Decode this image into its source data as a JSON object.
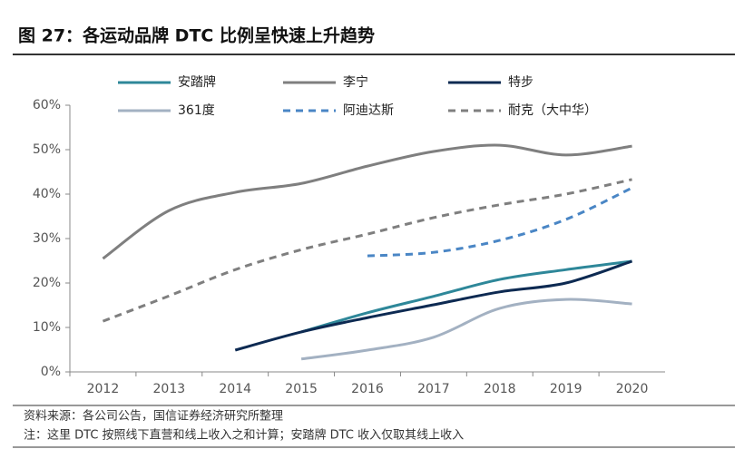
{
  "chart_data": {
    "type": "line",
    "title": "图 27：各运动品牌 DTC 比例呈快速上升趋势",
    "source": "资料来源：各公司公告，国信证券经济研究所整理",
    "note": "注：这里 DTC 按照线下直营和线上收入之和计算；安踏牌 DTC 收入仅取其线上收入",
    "categories": [
      "2012",
      "2013",
      "2014",
      "2015",
      "2016",
      "2017",
      "2018",
      "2019",
      "2020"
    ],
    "series": [
      {
        "name": "安踏牌",
        "color": "#2e8799",
        "style": "solid",
        "values": [
          null,
          null,
          null,
          9,
          13.3,
          17,
          20.8,
          23,
          24.9
        ]
      },
      {
        "name": "李宁",
        "color": "#7f7f7f",
        "style": "solid",
        "values": [
          25.5,
          36.3,
          40.4,
          42.4,
          46.3,
          49.6,
          51,
          48.8,
          50.8
        ]
      },
      {
        "name": "特步",
        "color": "#0d2a52",
        "style": "solid",
        "values": [
          null,
          null,
          4.9,
          9,
          12.2,
          15.1,
          18,
          20,
          24.9
        ]
      },
      {
        "name": "361度",
        "color": "#a3b1c2",
        "style": "solid",
        "values": [
          null,
          null,
          null,
          2.9,
          4.9,
          7.8,
          14.3,
          16.3,
          15.3
        ]
      },
      {
        "name": "阿迪达斯",
        "color": "#4a86c5",
        "style": "dashed",
        "values": [
          null,
          null,
          null,
          null,
          26.1,
          26.9,
          29.6,
          34.3,
          41.4
        ]
      },
      {
        "name": "耐克（大中华）",
        "color": "#7f7f7f",
        "style": "dashed",
        "values": [
          11.4,
          17.1,
          23,
          27.5,
          31,
          34.7,
          37.6,
          40,
          43.3
        ]
      }
    ],
    "ylim": [
      0,
      60
    ],
    "yticks": [
      {
        "value": 0,
        "label": "0%"
      },
      {
        "value": 10,
        "label": "10%"
      },
      {
        "value": 20,
        "label": "20%"
      },
      {
        "value": 30,
        "label": "30%"
      },
      {
        "value": 40,
        "label": "40%"
      },
      {
        "value": 50,
        "label": "50%"
      },
      {
        "value": 60,
        "label": "60%"
      }
    ],
    "legend": "top",
    "grid": false
  }
}
